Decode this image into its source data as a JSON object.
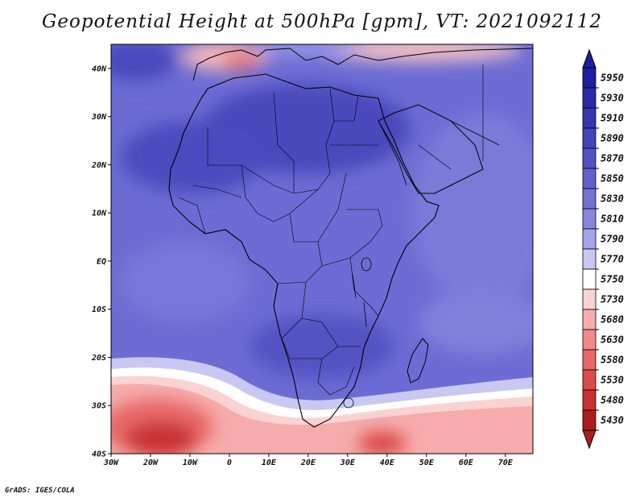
{
  "title": "Geopotential Height at 500hPa [gpm], VT: 2021092112",
  "credit": "GrADS: IGES/COLA",
  "map": {
    "longitude_range": [
      -30,
      77
    ],
    "latitude_range": [
      -40,
      45
    ],
    "lon_ticks": [
      "30W",
      "20W",
      "10W",
      "0",
      "10E",
      "20E",
      "30E",
      "40E",
      "50E",
      "60E",
      "70E"
    ],
    "lat_ticks": [
      "40N",
      "30N",
      "20N",
      "10N",
      "EQ",
      "10S",
      "20S",
      "30S",
      "40S"
    ]
  },
  "colorbar": {
    "levels": [
      "5950",
      "5930",
      "5910",
      "5890",
      "5870",
      "5850",
      "5830",
      "5810",
      "5790",
      "5770",
      "5750",
      "5730",
      "5680",
      "5630",
      "5580",
      "5530",
      "5480",
      "5430"
    ],
    "colors": [
      "#1e1ea0",
      "#2a2aa6",
      "#3636b0",
      "#4444ba",
      "#5252c4",
      "#6161cc",
      "#7272d4",
      "#8686dc",
      "#a4a4e8",
      "#c8c8f2",
      "#ffffff",
      "#fbd2d2",
      "#f6acac",
      "#f08a8a",
      "#e86868",
      "#dd4a4a",
      "#c93030",
      "#ad1c1c"
    ]
  }
}
